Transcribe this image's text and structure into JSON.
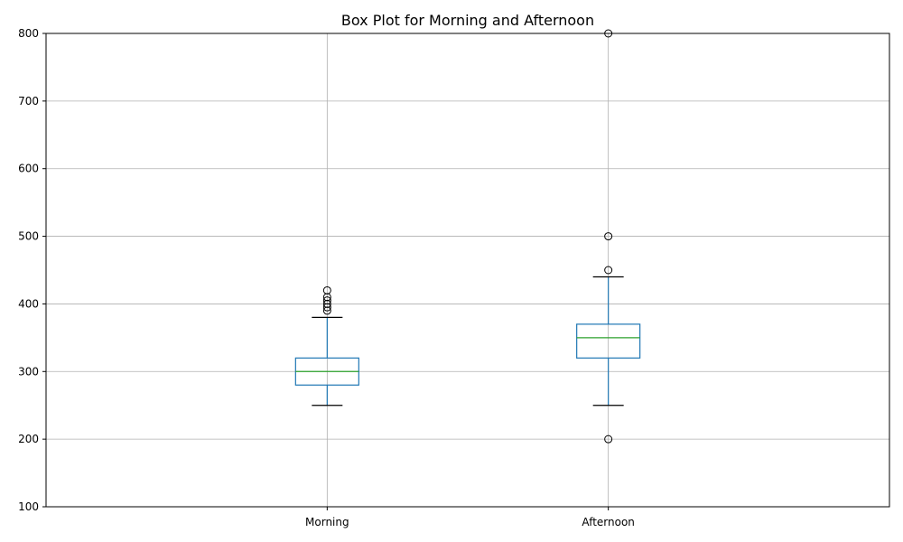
{
  "chart_data": {
    "type": "box",
    "title": "Box Plot for Morning and Afternoon",
    "xlabel": "",
    "ylabel": "",
    "ylim": [
      100,
      800
    ],
    "yticks": [
      100,
      200,
      300,
      400,
      500,
      600,
      700,
      800
    ],
    "grid": true,
    "categories": [
      "Morning",
      "Afternoon"
    ],
    "boxes": [
      {
        "label": "Morning",
        "whisker_low": 250,
        "q1": 280,
        "median": 300,
        "q3": 320,
        "whisker_high": 380,
        "outliers": [
          390,
          395,
          400,
          405,
          410,
          420
        ]
      },
      {
        "label": "Afternoon",
        "whisker_low": 250,
        "q1": 320,
        "median": 350,
        "q3": 370,
        "whisker_high": 440,
        "outliers": [
          200,
          450,
          500,
          800
        ]
      }
    ],
    "colors": {
      "box": "#1f77b4",
      "median": "#2ca02c",
      "whisker": "#1f77b4",
      "cap": "#000000",
      "grid": "#b0b0b0",
      "axis": "#000000",
      "outlier": "#000000"
    }
  }
}
